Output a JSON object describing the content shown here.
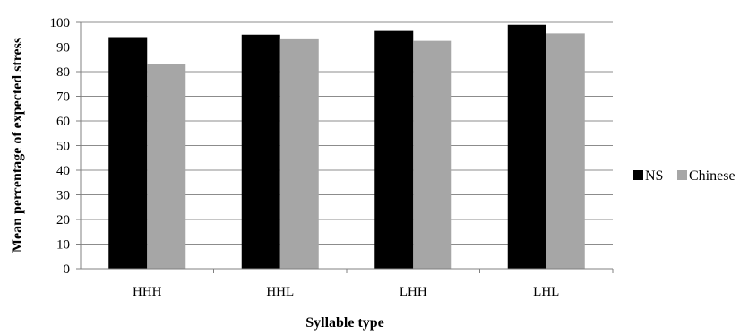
{
  "chart_data": {
    "type": "bar",
    "categories": [
      "HHH",
      "HHL",
      "LHH",
      "LHL"
    ],
    "series": [
      {
        "name": "NS",
        "values": [
          94,
          95,
          96.5,
          99
        ],
        "color": "#000000"
      },
      {
        "name": "Chinese",
        "values": [
          83,
          93.5,
          92.5,
          95.5
        ],
        "color": "#a6a6a6"
      }
    ],
    "title": "",
    "xlabel": "Syllable type",
    "ylabel": "Mean percentage of expected stress",
    "ylim": [
      0,
      100
    ],
    "yticks": [
      "0",
      "10",
      "20",
      "30",
      "40",
      "50",
      "60",
      "70",
      "80",
      "90",
      "100"
    ],
    "grid": true,
    "legend_position": "right"
  }
}
